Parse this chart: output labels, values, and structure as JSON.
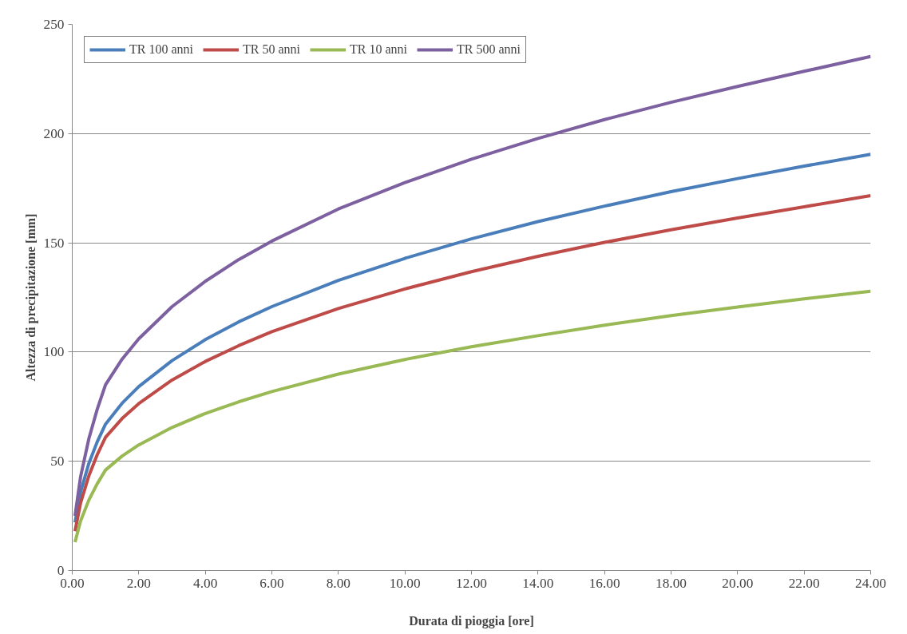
{
  "chart_data": {
    "type": "line",
    "xlabel": "Durata di pioggia [ore]",
    "ylabel": "Altezza di precipitazione [mm]",
    "x": [
      0.083,
      0.25,
      0.5,
      0.75,
      1,
      1.5,
      2,
      3,
      4,
      5,
      6,
      8,
      10,
      12,
      14,
      16,
      18,
      20,
      22,
      24
    ],
    "series": [
      {
        "name": "TR 100 anni",
        "color": "#4a7ebb",
        "values": [
          22,
          35.9,
          49.1,
          58.9,
          67,
          76.6,
          84.2,
          96.1,
          105.7,
          113.8,
          120.8,
          132.8,
          142.9,
          151.8,
          159.7,
          166.8,
          173.4,
          179.4,
          185.1,
          190.5
        ]
      },
      {
        "name": "TR 50 anni",
        "color": "#be4b48",
        "values": [
          18,
          30.9,
          43.4,
          53,
          61,
          69.6,
          76.4,
          87.2,
          95.7,
          102.9,
          109.3,
          119.9,
          128.9,
          136.8,
          143.8,
          150.2,
          156,
          161.4,
          166.5,
          171.6
        ]
      },
      {
        "name": "TR 10 anni",
        "color": "#98b954",
        "values": [
          13,
          22.7,
          32.3,
          39.7,
          46,
          52.4,
          57.5,
          65.5,
          71.9,
          77.2,
          81.9,
          89.9,
          96.6,
          102.4,
          107.5,
          112.3,
          116.7,
          120.6,
          124.4,
          127.8
        ]
      },
      {
        "name": "TR 500 anni",
        "color": "#7d60a0",
        "values": [
          25,
          42.9,
          60.4,
          73.8,
          85,
          96.8,
          106.1,
          120.8,
          132.4,
          142.3,
          150.8,
          165.5,
          177.6,
          188.3,
          197.8,
          206.4,
          214.3,
          221.6,
          228.5,
          235.3
        ]
      }
    ],
    "xlim": [
      0,
      24
    ],
    "ylim": [
      0,
      250
    ],
    "xticks": [
      {
        "value": 0,
        "label": "0.00"
      },
      {
        "value": 2,
        "label": "2.00"
      },
      {
        "value": 4,
        "label": "4.00"
      },
      {
        "value": 6,
        "label": "6.00"
      },
      {
        "value": 8,
        "label": "8.00"
      },
      {
        "value": 10,
        "label": "10.00"
      },
      {
        "value": 12,
        "label": "12.00"
      },
      {
        "value": 14,
        "label": "14.00"
      },
      {
        "value": 16,
        "label": "16.00"
      },
      {
        "value": 18,
        "label": "18.00"
      },
      {
        "value": 20,
        "label": "20.00"
      },
      {
        "value": 22,
        "label": "22.00"
      },
      {
        "value": 24,
        "label": "24.00"
      }
    ],
    "yticks": [
      0,
      50,
      100,
      150,
      200,
      250
    ],
    "grid": "y",
    "legend": "top left",
    "marker": "none",
    "line_style": "solid"
  }
}
